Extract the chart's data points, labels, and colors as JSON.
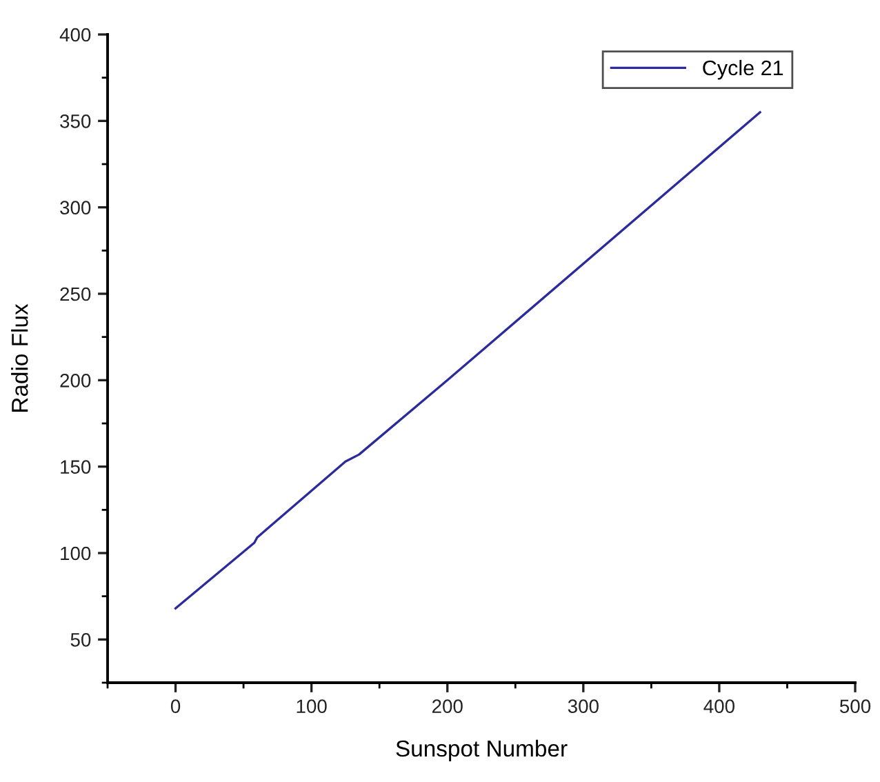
{
  "chart_data": {
    "type": "line",
    "xlabel": "Sunspot Number",
    "ylabel": "Radio Flux",
    "x": [
      0,
      58,
      60,
      125,
      135,
      200,
      430
    ],
    "series": [
      {
        "name": "Cycle 21",
        "color": "#2b2b9c",
        "values": [
          68,
          106,
          109,
          153,
          157,
          200,
          355
        ]
      }
    ],
    "xlim": [
      -50,
      500
    ],
    "xticks": [
      {
        "value": -50,
        "label": null
      },
      0,
      {
        "value": 50,
        "label": null
      },
      100,
      {
        "value": 150,
        "label": null
      },
      200,
      {
        "value": 250,
        "label": null
      },
      300,
      {
        "value": 350,
        "label": null
      },
      400,
      {
        "value": 450,
        "label": null
      },
      500
    ],
    "ylim": [
      25,
      400
    ],
    "yticks": [
      {
        "value": 25,
        "label": null
      },
      50,
      {
        "value": 75,
        "label": null
      },
      100,
      {
        "value": 125,
        "label": null
      },
      150,
      {
        "value": 175,
        "label": null
      },
      200,
      {
        "value": 225,
        "label": null
      },
      250,
      {
        "value": 275,
        "label": null
      },
      300,
      {
        "value": 325,
        "label": null
      },
      350,
      {
        "value": 375,
        "label": null
      },
      400
    ],
    "grid": false,
    "legend": "top right",
    "marker": "none",
    "line_style": "solid"
  }
}
